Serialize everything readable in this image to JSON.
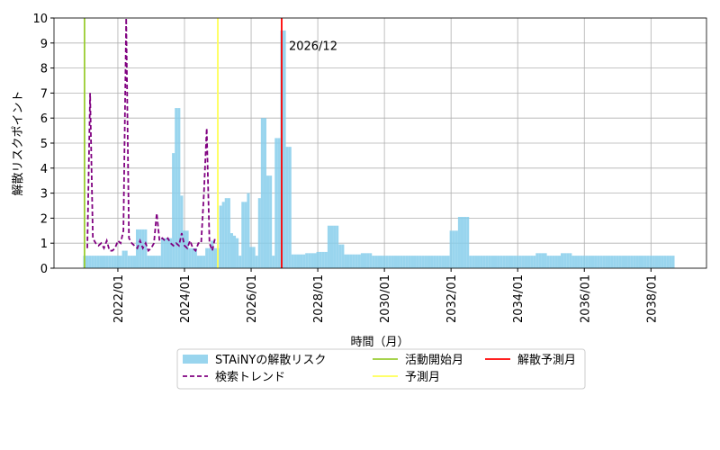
{
  "chart_data": {
    "type": "bar",
    "ylabel": "解散リスクポイント",
    "xlabel": "時間（月）",
    "x": [
      "2021/01",
      "2021/02",
      "2021/03",
      "2021/04",
      "2021/05",
      "2021/06",
      "2021/07",
      "2021/08",
      "2021/09",
      "2021/10",
      "2021/11",
      "2021/12",
      "2022/01",
      "2022/02",
      "2022/03",
      "2022/04",
      "2022/05",
      "2022/06",
      "2022/07",
      "2022/08",
      "2022/09",
      "2022/10",
      "2022/11",
      "2022/12",
      "2023/01",
      "2023/02",
      "2023/03",
      "2023/04",
      "2023/05",
      "2023/06",
      "2023/07",
      "2023/08",
      "2023/09",
      "2023/10",
      "2023/11",
      "2023/12",
      "2024/01",
      "2024/02",
      "2024/03",
      "2024/04",
      "2024/05",
      "2024/06",
      "2024/07",
      "2024/08",
      "2024/09",
      "2024/10",
      "2024/11",
      "2024/12",
      "2025/01",
      "2025/02",
      "2025/03",
      "2025/04",
      "2025/05",
      "2025/06",
      "2025/07",
      "2025/08",
      "2025/09",
      "2025/10",
      "2025/11",
      "2025/12",
      "2026/01",
      "2026/02",
      "2026/03",
      "2026/04",
      "2026/05",
      "2026/06",
      "2026/07",
      "2026/08",
      "2026/09",
      "2026/10",
      "2026/11",
      "2026/12",
      "2027/01",
      "2027/02",
      "2027/03",
      "2027/04",
      "2027/05",
      "2027/06",
      "2027/07",
      "2027/08",
      "2027/09",
      "2027/10",
      "2027/11",
      "2027/12",
      "2028/01",
      "2028/02",
      "2028/03",
      "2028/04",
      "2028/05",
      "2028/06",
      "2028/07",
      "2028/08",
      "2028/09",
      "2028/10",
      "2028/11",
      "2028/12",
      "2029/01",
      "2029/02",
      "2029/03",
      "2029/04",
      "2029/05",
      "2029/06",
      "2029/07",
      "2029/08",
      "2029/09",
      "2029/10",
      "2029/11",
      "2029/12",
      "2030/01",
      "2030/02",
      "2030/03",
      "2030/04",
      "2030/05",
      "2030/06",
      "2030/07",
      "2030/08",
      "2030/09",
      "2030/10",
      "2030/11",
      "2030/12",
      "2031/01",
      "2031/02",
      "2031/03",
      "2031/04",
      "2031/05",
      "2031/06",
      "2031/07",
      "2031/08",
      "2031/09",
      "2031/10",
      "2031/11",
      "2031/12",
      "2032/01",
      "2032/02",
      "2032/03",
      "2032/04",
      "2032/05",
      "2032/06",
      "2032/07",
      "2032/08",
      "2032/09",
      "2032/10",
      "2032/11",
      "2032/12",
      "2033/01",
      "2033/02",
      "2033/03",
      "2033/04",
      "2033/05",
      "2033/06",
      "2033/07",
      "2033/08",
      "2033/09",
      "2033/10",
      "2033/11",
      "2033/12",
      "2034/01",
      "2034/02",
      "2034/03",
      "2034/04",
      "2034/05",
      "2034/06",
      "2034/07",
      "2034/08",
      "2034/09",
      "2034/10",
      "2034/11",
      "2034/12",
      "2035/01",
      "2035/02",
      "2035/03",
      "2035/04",
      "2035/05",
      "2035/06",
      "2035/07",
      "2035/08",
      "2035/09",
      "2035/10",
      "2035/11",
      "2035/12",
      "2036/01",
      "2036/02",
      "2036/03",
      "2036/04",
      "2036/05",
      "2036/06",
      "2036/07",
      "2036/08",
      "2036/09",
      "2036/10",
      "2036/11",
      "2036/12",
      "2037/01",
      "2037/02",
      "2037/03",
      "2037/04",
      "2037/05",
      "2037/06",
      "2037/07",
      "2037/08",
      "2037/09",
      "2037/10",
      "2037/11",
      "2037/12",
      "2038/01",
      "2038/02",
      "2038/03",
      "2038/04",
      "2038/05",
      "2038/06",
      "2038/07",
      "2038/08",
      "2038/09"
    ],
    "series": [
      {
        "name": "STAiNYの解散リスク",
        "type": "bar",
        "color": "#87ceeb",
        "values": [
          0.5,
          0.5,
          0.5,
          0.5,
          0.5,
          0.5,
          0.5,
          0.5,
          0.5,
          0.5,
          0.5,
          0.5,
          0.5,
          0.5,
          0.7,
          0.7,
          0.5,
          0.5,
          0.5,
          1.55,
          1.55,
          1.55,
          1.55,
          0.5,
          0.5,
          0.5,
          0.5,
          0.5,
          1.2,
          1.2,
          1.2,
          1.2,
          4.6,
          6.4,
          6.4,
          2.9,
          1.5,
          1.5,
          0.8,
          0.8,
          0.8,
          0.5,
          0.5,
          0.5,
          0.8,
          0.8,
          1.1,
          0.8,
          0.8,
          2.5,
          2.65,
          2.8,
          2.8,
          1.4,
          1.3,
          1.2,
          0.5,
          2.65,
          2.65,
          3.0,
          0.85,
          0.85,
          0.5,
          2.8,
          6.0,
          6.0,
          3.7,
          3.7,
          0.5,
          5.2,
          5.2,
          9.5,
          9.5,
          4.85,
          4.85,
          0.55,
          0.55,
          0.55,
          0.55,
          0.55,
          0.6,
          0.6,
          0.6,
          0.6,
          0.65,
          0.65,
          0.65,
          0.65,
          1.7,
          1.7,
          1.7,
          1.7,
          0.95,
          0.95,
          0.55,
          0.55,
          0.55,
          0.55,
          0.55,
          0.55,
          0.6,
          0.6,
          0.6,
          0.6,
          0.5,
          0.5,
          0.5,
          0.5,
          0.5,
          0.5,
          0.5,
          0.5,
          0.5,
          0.5,
          0.5,
          0.5,
          0.5,
          0.5,
          0.5,
          0.5,
          0.5,
          0.5,
          0.5,
          0.5,
          0.5,
          0.5,
          0.5,
          0.5,
          0.5,
          0.5,
          0.5,
          0.5,
          1.5,
          1.5,
          1.5,
          2.05,
          2.05,
          2.05,
          2.05,
          0.5,
          0.5,
          0.5,
          0.5,
          0.5,
          0.5,
          0.5,
          0.5,
          0.5,
          0.5,
          0.5,
          0.5,
          0.5,
          0.5,
          0.5,
          0.5,
          0.5,
          0.5,
          0.5,
          0.5,
          0.5,
          0.5,
          0.5,
          0.5,
          0.6,
          0.6,
          0.6,
          0.6,
          0.5,
          0.5,
          0.5,
          0.5,
          0.5,
          0.6,
          0.6,
          0.6,
          0.6,
          0.5,
          0.5,
          0.5,
          0.5,
          0.5,
          0.5,
          0.5,
          0.5,
          0.5,
          0.5,
          0.5,
          0.5,
          0.5,
          0.5,
          0.5,
          0.5,
          0.5,
          0.5,
          0.5,
          0.5,
          0.5,
          0.5,
          0.5,
          0.5,
          0.5,
          0.5,
          0.5,
          0.5,
          0.5,
          0.5,
          0.5,
          0.5,
          0.5,
          0.5,
          0.5,
          0.5,
          0.5
        ]
      },
      {
        "name": "検索トレンド",
        "type": "line",
        "dashed": true,
        "color": "#800080",
        "x": [
          "2021/02",
          "2021/03",
          "2021/04",
          "2021/05",
          "2021/06",
          "2021/07",
          "2021/08",
          "2021/09",
          "2021/10",
          "2021/11",
          "2021/12",
          "2022/01",
          "2022/02",
          "2022/03",
          "2022/04",
          "2022/05",
          "2022/06",
          "2022/07",
          "2022/08",
          "2022/09",
          "2022/10",
          "2022/11",
          "2022/12",
          "2023/01",
          "2023/02",
          "2023/03",
          "2023/04",
          "2023/05",
          "2023/06",
          "2023/07",
          "2023/08",
          "2023/09",
          "2023/10",
          "2023/11",
          "2023/12",
          "2024/01",
          "2024/02",
          "2024/03",
          "2024/04",
          "2024/05",
          "2024/06",
          "2024/07",
          "2024/08",
          "2024/09",
          "2024/10",
          "2024/11",
          "2024/12"
        ],
        "values": [
          0.8,
          7.0,
          1.2,
          1.0,
          0.9,
          1.0,
          0.8,
          1.1,
          0.7,
          0.7,
          0.8,
          1.1,
          1.0,
          1.5,
          10.0,
          1.2,
          1.0,
          0.9,
          0.8,
          1.1,
          0.8,
          1.0,
          0.7,
          0.8,
          1.0,
          2.2,
          1.1,
          1.2,
          1.1,
          1.2,
          1.0,
          0.9,
          1.0,
          0.9,
          1.4,
          0.9,
          0.8,
          1.1,
          0.8,
          0.7,
          1.0,
          1.0,
          3.0,
          5.6,
          1.0,
          0.7,
          1.2
        ]
      }
    ],
    "vlines": [
      {
        "name": "活動開始月",
        "x": "2021/01",
        "color": "#9acd32"
      },
      {
        "name": "予測月",
        "x": "2025/01",
        "color": "#ffff55"
      },
      {
        "name": "解散予測月",
        "x": "2026/12",
        "color": "#ff0000"
      }
    ],
    "annotation": {
      "text": "2026/12",
      "x": "2026/12",
      "y": 8.9,
      "color": "#ff0000"
    },
    "xlim": [
      "2020/02",
      "2039/09"
    ],
    "xticks": [
      "2022/01",
      "2024/01",
      "2026/01",
      "2028/01",
      "2030/01",
      "2032/01",
      "2034/01",
      "2036/01",
      "2038/01"
    ],
    "ylim": [
      0,
      10
    ],
    "yticks": [
      0,
      1,
      2,
      3,
      4,
      5,
      6,
      7,
      8,
      9,
      10
    ],
    "grid": true
  }
}
